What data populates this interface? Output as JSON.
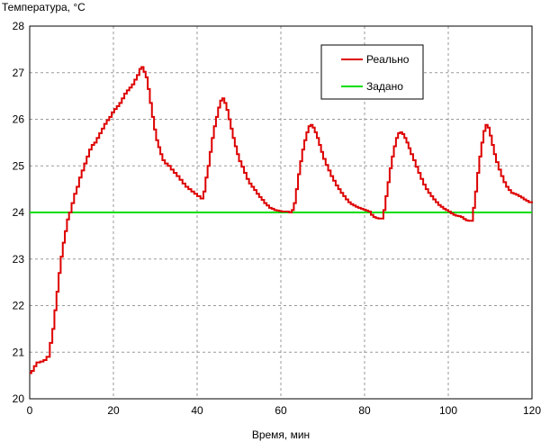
{
  "chart_data": {
    "type": "line",
    "title": "",
    "ylabel": "Температура, °С",
    "xlabel": "Время, мин",
    "xlim": [
      0,
      120
    ],
    "ylim": [
      20,
      28
    ],
    "x_ticks": [
      "0",
      "20",
      "40",
      "60",
      "80",
      "100",
      "120"
    ],
    "y_ticks": [
      "20",
      "21",
      "22",
      "23",
      "24",
      "25",
      "26",
      "27",
      "28"
    ],
    "grid": "dashed",
    "legend_position": "top-right",
    "series": [
      {
        "name": "Реально",
        "color": "#dd0000",
        "step": true,
        "points": [
          [
            0,
            20.55
          ],
          [
            0.4,
            20.6
          ],
          [
            1,
            20.7
          ],
          [
            1.6,
            20.78
          ],
          [
            2.5,
            20.8
          ],
          [
            3.3,
            20.83
          ],
          [
            4,
            20.9
          ],
          [
            4.8,
            21.2
          ],
          [
            5.4,
            21.5
          ],
          [
            5.9,
            21.9
          ],
          [
            6.4,
            22.3
          ],
          [
            6.9,
            22.7
          ],
          [
            7.4,
            23.05
          ],
          [
            7.9,
            23.35
          ],
          [
            8.4,
            23.6
          ],
          [
            8.9,
            23.85
          ],
          [
            9.4,
            24.0
          ],
          [
            10,
            24.2
          ],
          [
            10.6,
            24.4
          ],
          [
            11.2,
            24.55
          ],
          [
            11.8,
            24.75
          ],
          [
            12.4,
            24.9
          ],
          [
            13,
            25.05
          ],
          [
            13.6,
            25.2
          ],
          [
            14.2,
            25.35
          ],
          [
            14.8,
            25.45
          ],
          [
            15.4,
            25.5
          ],
          [
            16,
            25.6
          ],
          [
            16.6,
            25.7
          ],
          [
            17.2,
            25.8
          ],
          [
            17.8,
            25.9
          ],
          [
            18.4,
            25.98
          ],
          [
            19,
            26.05
          ],
          [
            19.6,
            26.15
          ],
          [
            20.2,
            26.22
          ],
          [
            20.8,
            26.28
          ],
          [
            21.4,
            26.35
          ],
          [
            22,
            26.45
          ],
          [
            22.6,
            26.55
          ],
          [
            23.2,
            26.62
          ],
          [
            23.8,
            26.68
          ],
          [
            24.4,
            26.75
          ],
          [
            25,
            26.85
          ],
          [
            25.6,
            26.95
          ],
          [
            26.2,
            27.08
          ],
          [
            26.7,
            27.12
          ],
          [
            27.2,
            27.02
          ],
          [
            27.7,
            26.9
          ],
          [
            28.2,
            26.65
          ],
          [
            28.7,
            26.35
          ],
          [
            29.2,
            26.05
          ],
          [
            29.7,
            25.78
          ],
          [
            30.2,
            25.55
          ],
          [
            30.7,
            25.4
          ],
          [
            31.2,
            25.25
          ],
          [
            31.7,
            25.12
          ],
          [
            32.3,
            25.05
          ],
          [
            33,
            25.0
          ],
          [
            33.7,
            24.92
          ],
          [
            34.4,
            24.85
          ],
          [
            35.1,
            24.78
          ],
          [
            35.8,
            24.7
          ],
          [
            36.5,
            24.62
          ],
          [
            37.2,
            24.55
          ],
          [
            37.9,
            24.5
          ],
          [
            38.6,
            24.45
          ],
          [
            39.3,
            24.4
          ],
          [
            40,
            24.35
          ],
          [
            40.8,
            24.3
          ],
          [
            41.5,
            24.45
          ],
          [
            42,
            24.75
          ],
          [
            42.5,
            25.0
          ],
          [
            43,
            25.3
          ],
          [
            43.5,
            25.6
          ],
          [
            44,
            25.85
          ],
          [
            44.5,
            26.05
          ],
          [
            45,
            26.25
          ],
          [
            45.5,
            26.4
          ],
          [
            46,
            26.45
          ],
          [
            46.5,
            26.35
          ],
          [
            47,
            26.2
          ],
          [
            47.5,
            26.0
          ],
          [
            48,
            25.8
          ],
          [
            48.5,
            25.6
          ],
          [
            49,
            25.42
          ],
          [
            49.5,
            25.25
          ],
          [
            50,
            25.1
          ],
          [
            50.6,
            24.98
          ],
          [
            51.2,
            24.85
          ],
          [
            51.8,
            24.72
          ],
          [
            52.4,
            24.62
          ],
          [
            53,
            24.55
          ],
          [
            53.6,
            24.48
          ],
          [
            54.2,
            24.4
          ],
          [
            54.8,
            24.33
          ],
          [
            55.4,
            24.27
          ],
          [
            56,
            24.2
          ],
          [
            56.6,
            24.15
          ],
          [
            57.2,
            24.1
          ],
          [
            57.8,
            24.08
          ],
          [
            58.4,
            24.05
          ],
          [
            59,
            24.04
          ],
          [
            59.6,
            24.03
          ],
          [
            60.2,
            24.02
          ],
          [
            60.8,
            24.02
          ],
          [
            61.4,
            24.02
          ],
          [
            62.0,
            24.0
          ],
          [
            62.6,
            24.05
          ],
          [
            63.1,
            24.2
          ],
          [
            63.6,
            24.5
          ],
          [
            64.1,
            24.82
          ],
          [
            64.6,
            25.1
          ],
          [
            65.1,
            25.35
          ],
          [
            65.6,
            25.55
          ],
          [
            66.1,
            25.72
          ],
          [
            66.6,
            25.85
          ],
          [
            67.1,
            25.88
          ],
          [
            67.6,
            25.82
          ],
          [
            68.1,
            25.72
          ],
          [
            68.6,
            25.6
          ],
          [
            69.1,
            25.45
          ],
          [
            69.6,
            25.3
          ],
          [
            70.1,
            25.15
          ],
          [
            70.7,
            25.02
          ],
          [
            71.3,
            24.9
          ],
          [
            71.9,
            24.78
          ],
          [
            72.5,
            24.68
          ],
          [
            73.1,
            24.58
          ],
          [
            73.7,
            24.5
          ],
          [
            74.3,
            24.42
          ],
          [
            74.9,
            24.35
          ],
          [
            75.5,
            24.28
          ],
          [
            76.1,
            24.22
          ],
          [
            76.7,
            24.18
          ],
          [
            77.3,
            24.15
          ],
          [
            77.9,
            24.12
          ],
          [
            78.5,
            24.1
          ],
          [
            79.1,
            24.08
          ],
          [
            79.7,
            24.06
          ],
          [
            80.3,
            24.04
          ],
          [
            80.9,
            24.02
          ],
          [
            81.5,
            23.95
          ],
          [
            82.1,
            23.9
          ],
          [
            82.7,
            23.88
          ],
          [
            83.3,
            23.87
          ],
          [
            84,
            23.87
          ],
          [
            84.5,
            24.05
          ],
          [
            85,
            24.35
          ],
          [
            85.5,
            24.65
          ],
          [
            86,
            24.95
          ],
          [
            86.5,
            25.2
          ],
          [
            87,
            25.42
          ],
          [
            87.5,
            25.6
          ],
          [
            88,
            25.7
          ],
          [
            88.5,
            25.72
          ],
          [
            89,
            25.68
          ],
          [
            89.5,
            25.6
          ],
          [
            90,
            25.5
          ],
          [
            90.5,
            25.38
          ],
          [
            91,
            25.25
          ],
          [
            91.6,
            25.12
          ],
          [
            92.2,
            24.98
          ],
          [
            92.8,
            24.85
          ],
          [
            93.4,
            24.72
          ],
          [
            94,
            24.6
          ],
          [
            94.6,
            24.5
          ],
          [
            95.2,
            24.42
          ],
          [
            95.8,
            24.35
          ],
          [
            96.4,
            24.28
          ],
          [
            97,
            24.22
          ],
          [
            97.6,
            24.16
          ],
          [
            98.2,
            24.12
          ],
          [
            98.8,
            24.08
          ],
          [
            99.4,
            24.05
          ],
          [
            100,
            24.02
          ],
          [
            100.6,
            23.98
          ],
          [
            101.2,
            23.95
          ],
          [
            101.8,
            23.93
          ],
          [
            102.4,
            23.92
          ],
          [
            103,
            23.9
          ],
          [
            103.6,
            23.86
          ],
          [
            104.2,
            23.83
          ],
          [
            104.8,
            23.82
          ],
          [
            105.4,
            23.82
          ],
          [
            105.9,
            24.1
          ],
          [
            106.4,
            24.45
          ],
          [
            106.9,
            24.85
          ],
          [
            107.4,
            25.2
          ],
          [
            107.9,
            25.5
          ],
          [
            108.4,
            25.75
          ],
          [
            108.9,
            25.88
          ],
          [
            109.4,
            25.82
          ],
          [
            109.9,
            25.65
          ],
          [
            110.4,
            25.45
          ],
          [
            110.9,
            25.25
          ],
          [
            111.4,
            25.08
          ],
          [
            112,
            24.92
          ],
          [
            112.6,
            24.78
          ],
          [
            113.2,
            24.65
          ],
          [
            113.8,
            24.55
          ],
          [
            114.4,
            24.48
          ],
          [
            115,
            24.42
          ],
          [
            115.6,
            24.4
          ],
          [
            116.2,
            24.38
          ],
          [
            116.8,
            24.35
          ],
          [
            117.4,
            24.32
          ],
          [
            118,
            24.28
          ],
          [
            118.6,
            24.25
          ],
          [
            119.2,
            24.22
          ],
          [
            120,
            24.2
          ]
        ]
      },
      {
        "name": "Задано",
        "color": "#00dd00",
        "step": false,
        "points": [
          [
            0,
            24.0
          ],
          [
            120,
            24.0
          ]
        ]
      }
    ]
  }
}
